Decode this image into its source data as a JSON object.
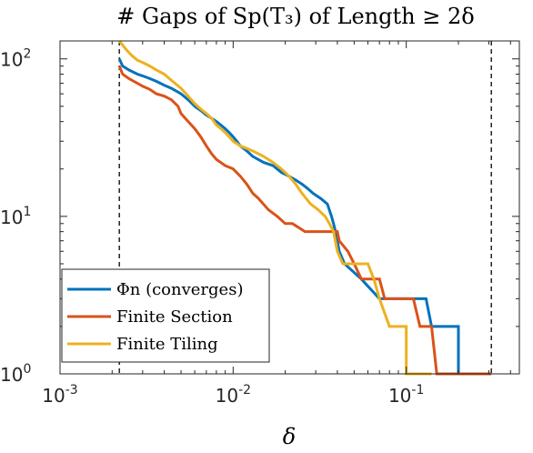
{
  "chart_data": {
    "type": "line",
    "title": "# Gaps of Sp(T₃) of Length ≥ 2δ",
    "xlabel": "δ",
    "ylabel": "",
    "x_scale": "log",
    "y_scale": "log",
    "xlim": [
      0.001,
      0.45
    ],
    "ylim": [
      1,
      130
    ],
    "x_ticks": [
      {
        "value": 0.001,
        "base": "10",
        "exp": "-3"
      },
      {
        "value": 0.01,
        "base": "10",
        "exp": "-2"
      },
      {
        "value": 0.1,
        "base": "10",
        "exp": "-1"
      }
    ],
    "y_ticks": [
      {
        "value": 1,
        "base": "10",
        "exp": "0"
      },
      {
        "value": 10,
        "base": "10",
        "exp": "1"
      },
      {
        "value": 100,
        "base": "10",
        "exp": "2"
      }
    ],
    "grid": false,
    "legend_position": "bottom-left",
    "reference_lines": [
      0.0022,
      0.31
    ],
    "series": [
      {
        "name": "Φn (converges)",
        "color": "#0072BD",
        "points": [
          [
            0.0022,
            100
          ],
          [
            0.0023,
            90
          ],
          [
            0.0025,
            85
          ],
          [
            0.0028,
            80
          ],
          [
            0.003,
            78
          ],
          [
            0.0033,
            75
          ],
          [
            0.0036,
            72
          ],
          [
            0.004,
            68
          ],
          [
            0.0044,
            65
          ],
          [
            0.005,
            60
          ],
          [
            0.0055,
            55
          ],
          [
            0.006,
            50
          ],
          [
            0.0065,
            47
          ],
          [
            0.007,
            44
          ],
          [
            0.0075,
            42
          ],
          [
            0.008,
            40
          ],
          [
            0.0085,
            38
          ],
          [
            0.009,
            36
          ],
          [
            0.0095,
            34
          ],
          [
            0.01,
            32
          ],
          [
            0.0105,
            30
          ],
          [
            0.011,
            28
          ],
          [
            0.012,
            26
          ],
          [
            0.013,
            24
          ],
          [
            0.015,
            22
          ],
          [
            0.017,
            21
          ],
          [
            0.019,
            19
          ],
          [
            0.021,
            18
          ],
          [
            0.023,
            17
          ],
          [
            0.025,
            16
          ],
          [
            0.027,
            15
          ],
          [
            0.029,
            14
          ],
          [
            0.032,
            13
          ],
          [
            0.035,
            12
          ],
          [
            0.037,
            10
          ],
          [
            0.038,
            9
          ],
          [
            0.039,
            8
          ],
          [
            0.04,
            7
          ],
          [
            0.041,
            6
          ],
          [
            0.044,
            5
          ],
          [
            0.055,
            4
          ],
          [
            0.07,
            3
          ],
          [
            0.09,
            3
          ],
          [
            0.13,
            3
          ],
          [
            0.14,
            2
          ],
          [
            0.2,
            2
          ],
          [
            0.2,
            1
          ],
          [
            0.31,
            1
          ]
        ]
      },
      {
        "name": "Finite Section",
        "color": "#D95319",
        "points": [
          [
            0.0022,
            90
          ],
          [
            0.0023,
            80
          ],
          [
            0.0025,
            75
          ],
          [
            0.0028,
            70
          ],
          [
            0.003,
            67
          ],
          [
            0.0033,
            64
          ],
          [
            0.0036,
            60
          ],
          [
            0.004,
            58
          ],
          [
            0.0044,
            55
          ],
          [
            0.0048,
            50
          ],
          [
            0.005,
            45
          ],
          [
            0.0055,
            40
          ],
          [
            0.006,
            36
          ],
          [
            0.0065,
            32
          ],
          [
            0.007,
            28
          ],
          [
            0.0075,
            25
          ],
          [
            0.008,
            23
          ],
          [
            0.009,
            21
          ],
          [
            0.01,
            20
          ],
          [
            0.011,
            18
          ],
          [
            0.012,
            16
          ],
          [
            0.013,
            14
          ],
          [
            0.014,
            13
          ],
          [
            0.016,
            11
          ],
          [
            0.018,
            10
          ],
          [
            0.02,
            9
          ],
          [
            0.022,
            9
          ],
          [
            0.026,
            8
          ],
          [
            0.028,
            8
          ],
          [
            0.04,
            8
          ],
          [
            0.041,
            7
          ],
          [
            0.046,
            6
          ],
          [
            0.05,
            5
          ],
          [
            0.055,
            4
          ],
          [
            0.07,
            4
          ],
          [
            0.075,
            3
          ],
          [
            0.11,
            3
          ],
          [
            0.12,
            2
          ],
          [
            0.14,
            2
          ],
          [
            0.15,
            1
          ],
          [
            0.31,
            1
          ]
        ]
      },
      {
        "name": "Finite Tiling",
        "color": "#EDB120",
        "points": [
          [
            0.0022,
            130
          ],
          [
            0.0024,
            115
          ],
          [
            0.0026,
            105
          ],
          [
            0.0028,
            98
          ],
          [
            0.003,
            95
          ],
          [
            0.0033,
            90
          ],
          [
            0.0036,
            85
          ],
          [
            0.004,
            80
          ],
          [
            0.0044,
            73
          ],
          [
            0.005,
            65
          ],
          [
            0.0055,
            58
          ],
          [
            0.006,
            52
          ],
          [
            0.0065,
            48
          ],
          [
            0.007,
            45
          ],
          [
            0.0075,
            42
          ],
          [
            0.008,
            38
          ],
          [
            0.0085,
            36
          ],
          [
            0.009,
            34
          ],
          [
            0.0095,
            32
          ],
          [
            0.01,
            30
          ],
          [
            0.011,
            28
          ],
          [
            0.012,
            27
          ],
          [
            0.013,
            26
          ],
          [
            0.015,
            24
          ],
          [
            0.017,
            22
          ],
          [
            0.019,
            20
          ],
          [
            0.021,
            18
          ],
          [
            0.023,
            16
          ],
          [
            0.025,
            14
          ],
          [
            0.028,
            12
          ],
          [
            0.031,
            11
          ],
          [
            0.034,
            10
          ],
          [
            0.036,
            9
          ],
          [
            0.038,
            8
          ],
          [
            0.04,
            6
          ],
          [
            0.043,
            5
          ],
          [
            0.05,
            5
          ],
          [
            0.06,
            5
          ],
          [
            0.065,
            4
          ],
          [
            0.07,
            3
          ],
          [
            0.08,
            2
          ],
          [
            0.1,
            2
          ],
          [
            0.1,
            1
          ],
          [
            0.14,
            1
          ]
        ]
      }
    ]
  }
}
